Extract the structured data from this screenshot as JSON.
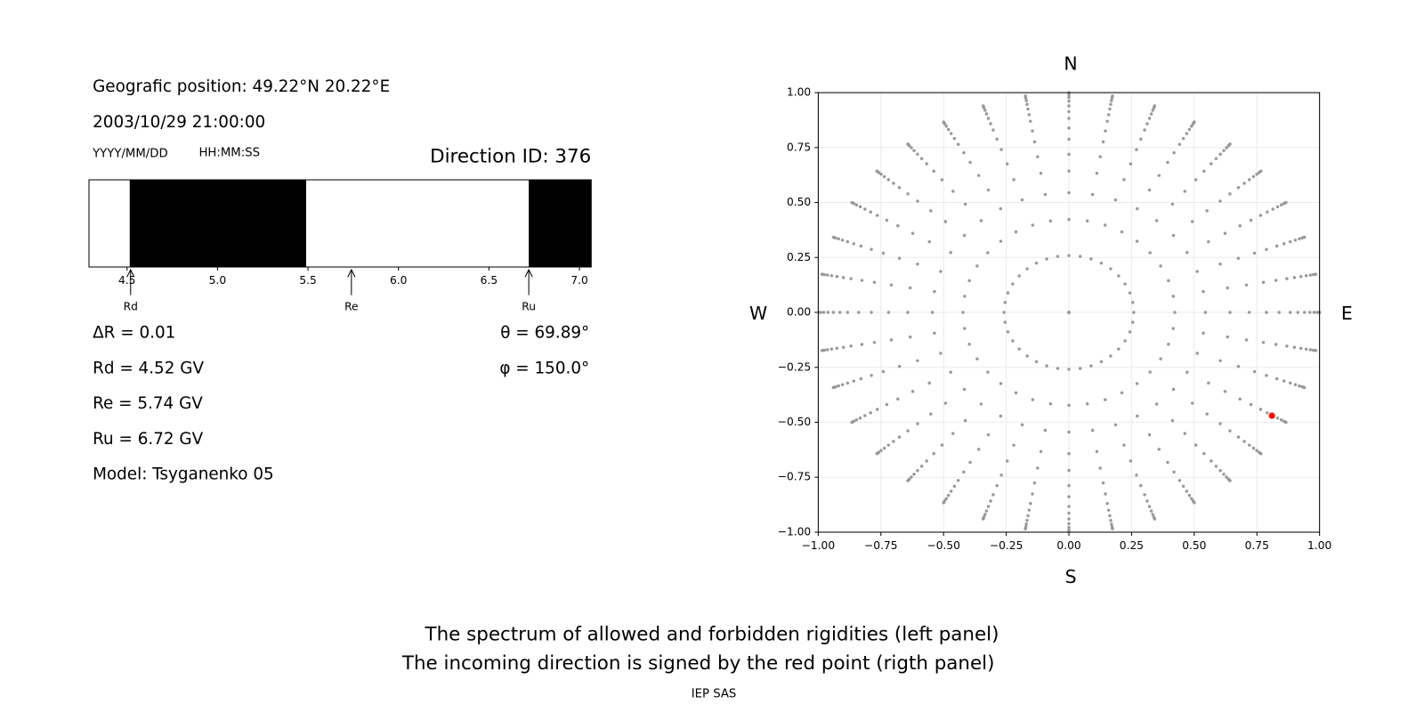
{
  "left_panel": {
    "position": "Geografic position: 49.22°N 20.22°E",
    "datetime": "2003/10/29 21:00:00",
    "date_format": "YYYY/MM/DD",
    "time_format": "HH:MM:SS",
    "direction_id": "Direction ID: 376",
    "delta_r": "ΔR = 0.01",
    "rd": "Rd = 4.52 GV",
    "re": "Re = 5.74 GV",
    "ru": "Ru = 6.72 GV",
    "model": "Model: Tsyganenko 05",
    "theta": "θ = 69.89°",
    "phi": "φ = 150.0°"
  },
  "chart_data": [
    {
      "type": "spectrum",
      "xlim": [
        4.29,
        7.065
      ],
      "xticks": [
        4.5,
        {
          "value": 5,
          "label": "5.0"
        },
        5.5,
        {
          "value": 6,
          "label": "6.0"
        },
        6.5,
        {
          "value": 7,
          "label": "7.0"
        }
      ],
      "forbidden": [
        [
          4.515,
          5.49
        ],
        [
          6.72,
          7.065
        ]
      ],
      "color": "#000000",
      "markers": [
        {
          "name": "Rd",
          "value": 4.52
        },
        {
          "name": "Re",
          "value": 5.74
        },
        {
          "name": "Ru",
          "value": 6.72
        }
      ]
    },
    {
      "type": "scatter",
      "xlim": [
        -1,
        1
      ],
      "ylim": [
        -1,
        1
      ],
      "grid": true,
      "xticks": [
        {
          "value": -1,
          "label": "−1.00"
        },
        {
          "value": -0.75,
          "label": "−0.75"
        },
        {
          "value": -0.5,
          "label": "−0.50"
        },
        {
          "value": -0.25,
          "label": "−0.25"
        },
        {
          "value": 0,
          "label": "0.00"
        },
        0.25,
        {
          "value": 0.5,
          "label": "0.50"
        },
        0.75,
        {
          "value": 1,
          "label": "1.00"
        }
      ],
      "yticks": [
        {
          "value": -1,
          "label": "−1.00"
        },
        {
          "value": -0.75,
          "label": "−0.75"
        },
        {
          "value": -0.5,
          "label": "−0.50"
        },
        {
          "value": -0.25,
          "label": "−0.25"
        },
        {
          "value": 0,
          "label": "0.00"
        },
        0.25,
        {
          "value": 0.5,
          "label": "0.50"
        },
        0.75,
        {
          "value": 1,
          "label": "1.00"
        }
      ],
      "compass": {
        "north": "N",
        "south": "S",
        "west": "W",
        "east": "E"
      },
      "directions": {
        "color": "#999999",
        "theta_deg": [
          0,
          15,
          25,
          33,
          40,
          46,
          52,
          57,
          62,
          66,
          70,
          74,
          78,
          82,
          86,
          90
        ],
        "phi_deg": [
          0,
          10,
          20,
          30,
          40,
          50,
          60,
          70,
          80,
          90,
          100,
          110,
          120,
          130,
          140,
          150,
          160,
          170,
          180,
          190,
          200,
          210,
          220,
          230,
          240,
          250,
          260,
          270,
          280,
          290,
          300,
          310,
          320,
          330,
          340,
          350
        ]
      },
      "series": [
        {
          "color": "#ff0000",
          "x": [
            0.81
          ],
          "y": [
            -0.47
          ]
        }
      ]
    }
  ],
  "caption": [
    "The spectrum of allowed and forbidden rigidities (left panel)",
    "The incoming direction is signed by the red point (rigth panel)"
  ],
  "footer": "IEP SAS"
}
